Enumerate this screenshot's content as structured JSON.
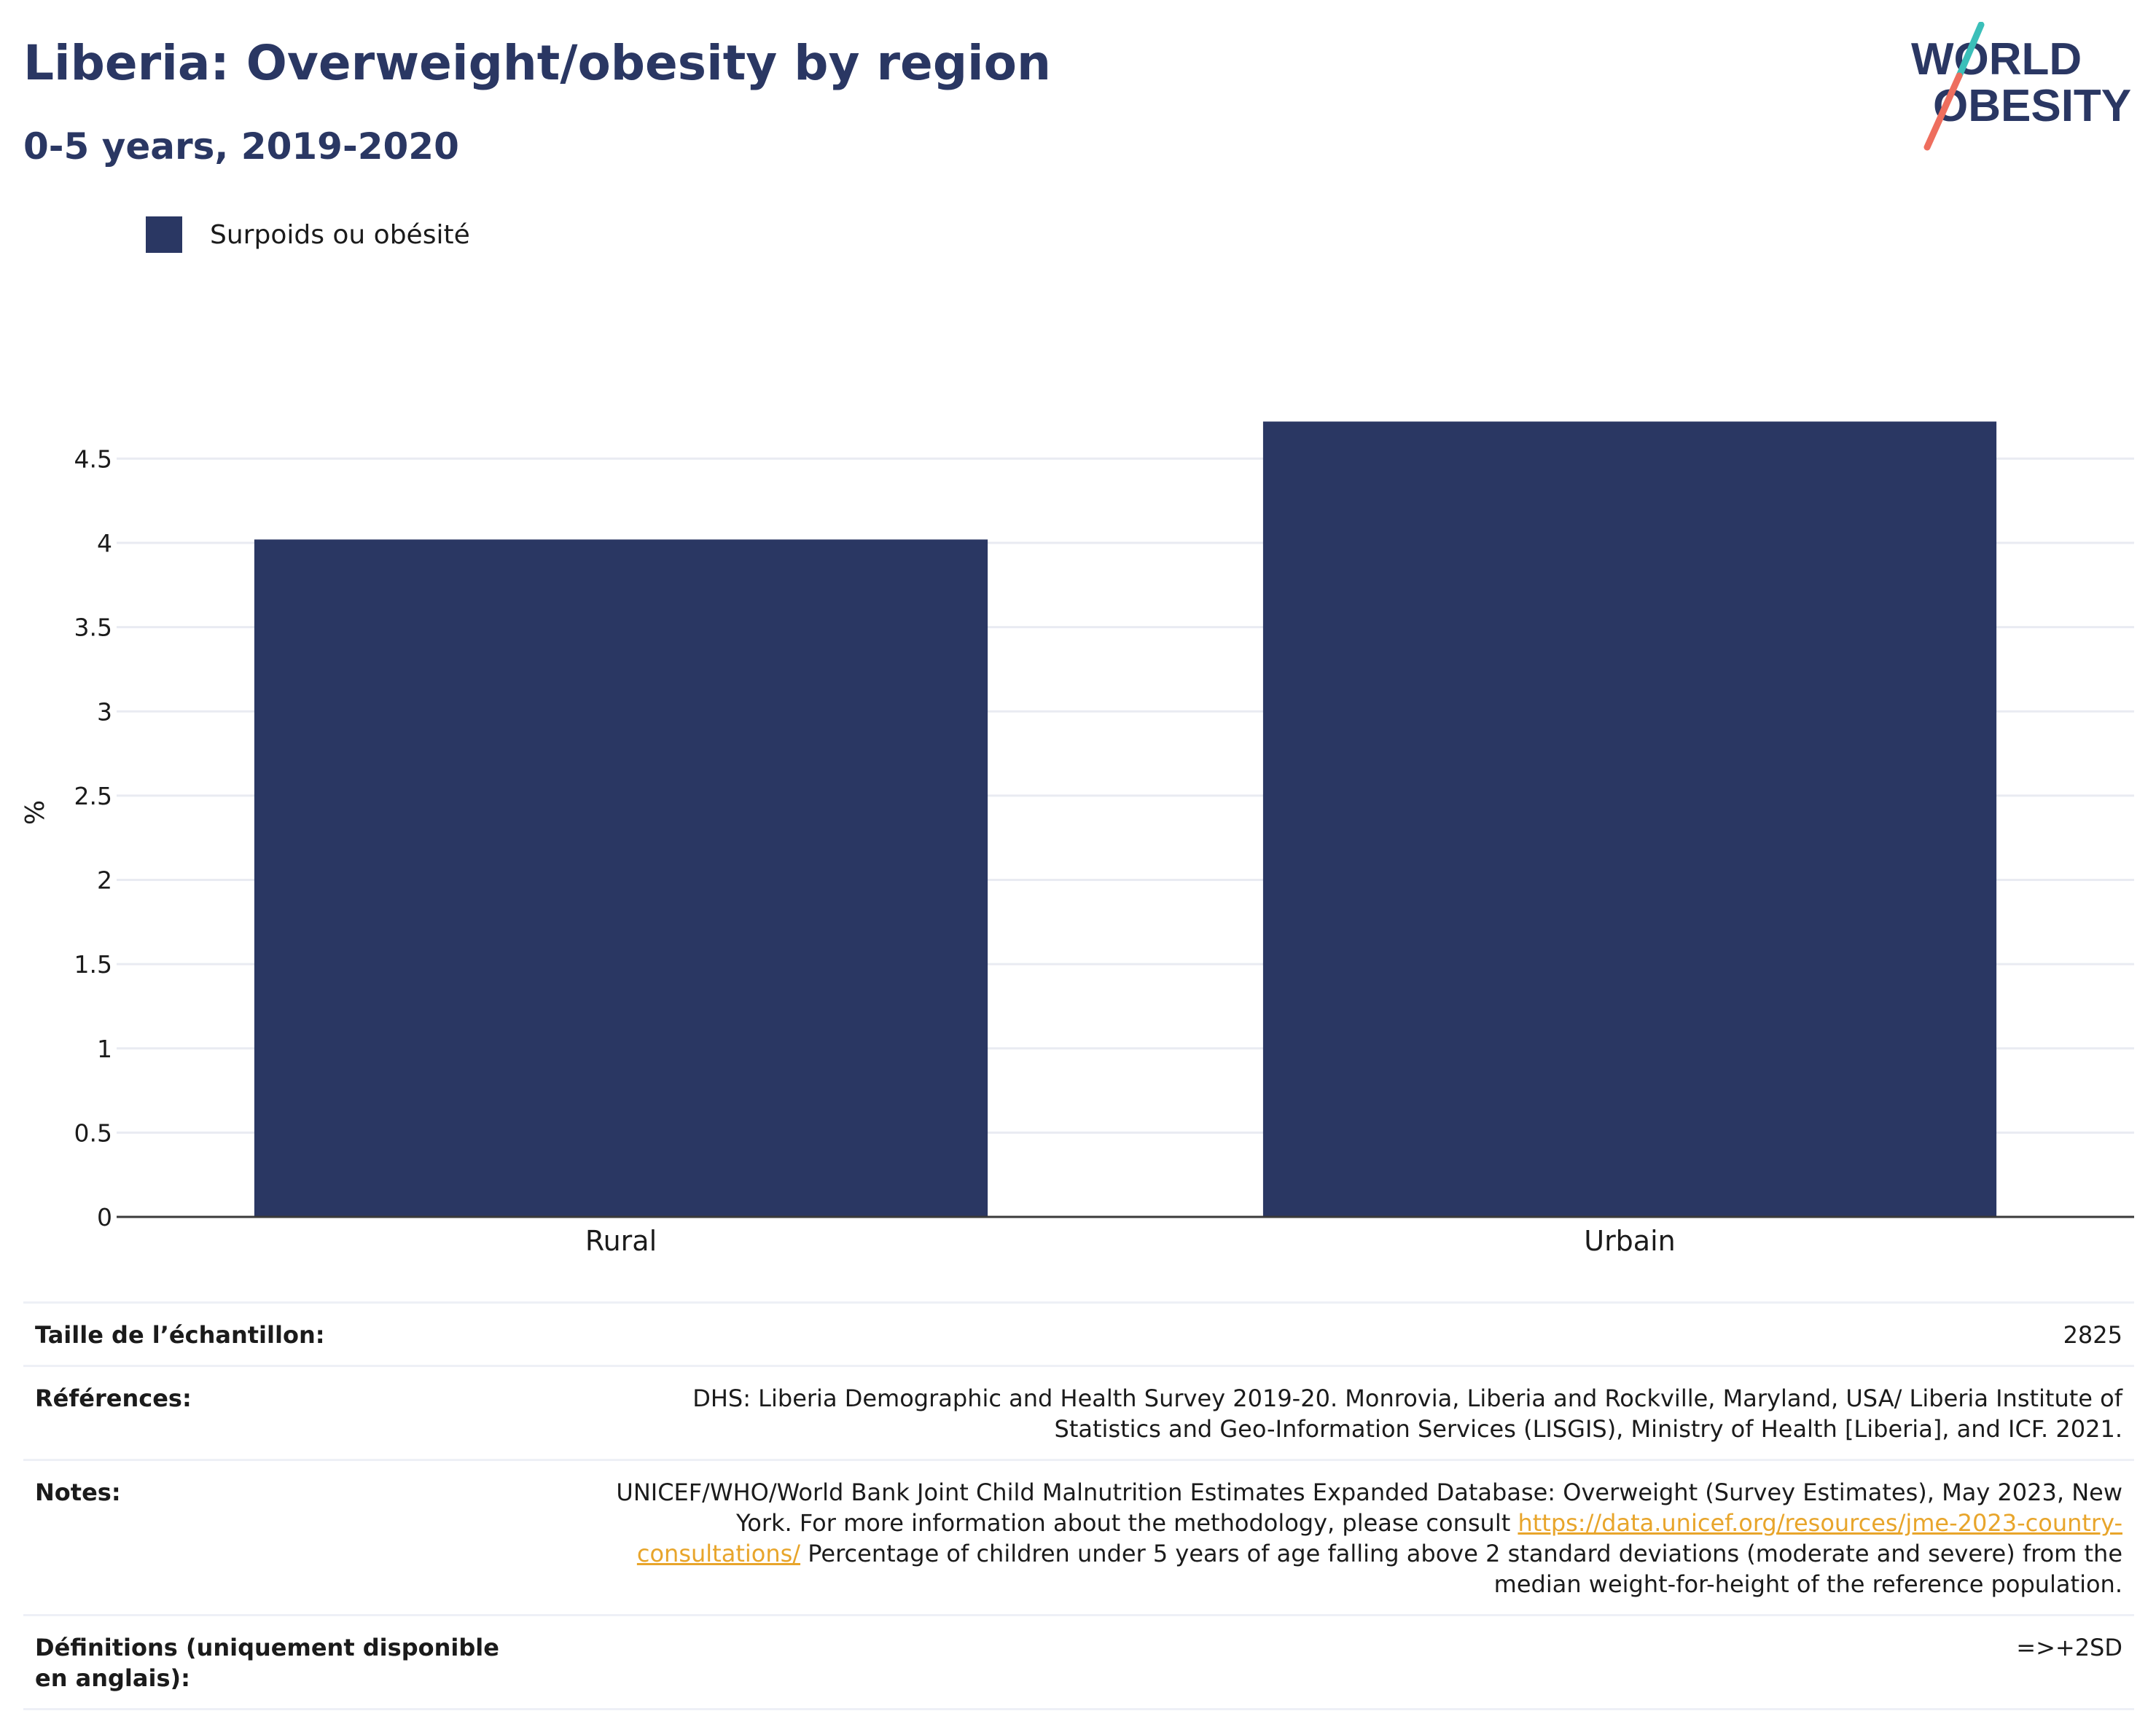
{
  "header": {
    "title": "Liberia: Overweight/obesity by region",
    "subtitle": "0-5 years, 2019-2020"
  },
  "logo": {
    "line1": "WORLD",
    "line2": "OBESITY",
    "colors": {
      "text": "#2a3763",
      "slash_top": "#3bbfb9",
      "slash_bottom": "#ee6e5e"
    }
  },
  "legend": {
    "label": "Surpoids ou obésité",
    "color": "#2a3763"
  },
  "chart_data": {
    "type": "bar",
    "categories": [
      "Rural",
      "Urbain"
    ],
    "series": [
      {
        "name": "Surpoids ou obésité",
        "values": [
          4.02,
          4.72
        ],
        "color": "#2a3763"
      }
    ],
    "ylabel": "%",
    "xlabel": "",
    "ylim": [
      0,
      4.8
    ],
    "yticks": [
      0,
      0.5,
      1,
      1.5,
      2,
      2.5,
      3,
      3.5,
      4,
      4.5
    ],
    "ytick_labels": [
      "0",
      "0.5",
      "1",
      "1.5",
      "2",
      "2.5",
      "3",
      "3.5",
      "4",
      "4.5"
    ],
    "grid": true,
    "legend_position": "top-left"
  },
  "info": {
    "sample_label": "Taille de l’échantillon:",
    "sample_value": "2825",
    "references_label": "Références:",
    "references_value": "DHS: Liberia Demographic and Health Survey 2019-20. Monrovia, Liberia and Rockville, Maryland, USA/ Liberia Institute of Statistics and Geo-Information Services (LISGIS), Ministry of Health [Liberia], and ICF. 2021.",
    "notes_label": "Notes:",
    "notes_text_before": "UNICEF/WHO/World Bank Joint Child Malnutrition Estimates Expanded Database: Overweight (Survey Estimates), May 2023, New York. For more information about the methodology, please consult ",
    "notes_link": "https://data.unicef.org/resources/jme-2023-country-consultations/",
    "notes_text_after": " Percentage of children under 5 years of age falling above 2 standard deviations (moderate and severe) from the median weight-for-height of the reference population.",
    "definitions_label": "Définitions (uniquement disponible en anglais):",
    "definitions_value": "=>+2SD"
  }
}
